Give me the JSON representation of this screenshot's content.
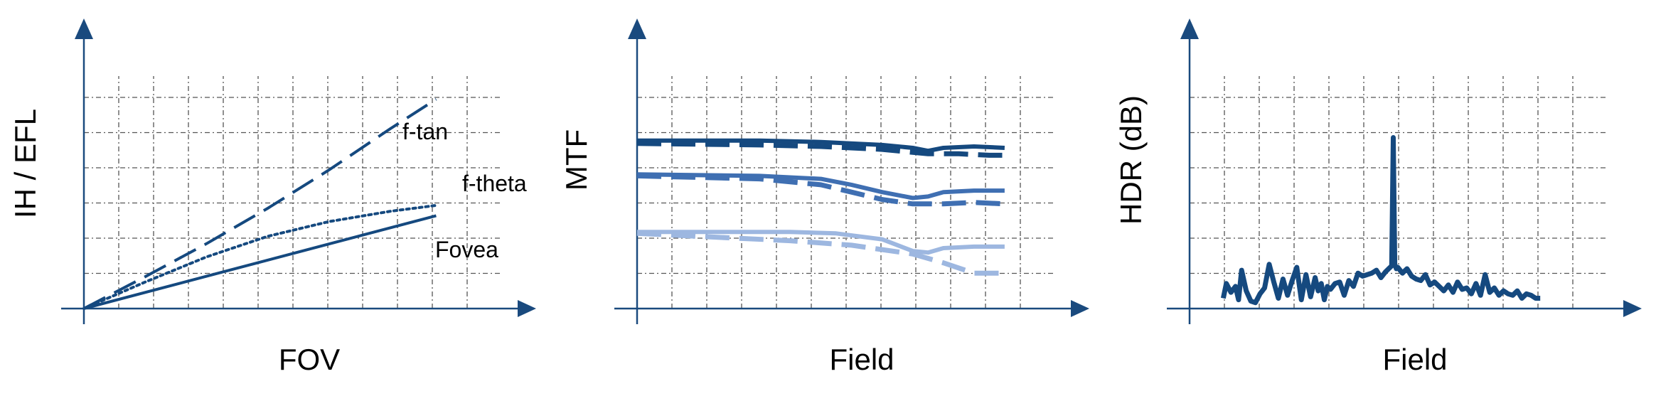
{
  "colors": {
    "axis": "#1a4a7e",
    "grid": "#555555",
    "dark_blue": "#15497f",
    "mid_blue": "#3f6fb2",
    "light_blue": "#9db7e0"
  },
  "chart_data": [
    {
      "type": "line",
      "xlabel": "FOV",
      "ylabel": "IH / EFL",
      "title": "",
      "grid": true,
      "tick_labels": false,
      "xlim": [
        0,
        13
      ],
      "ylim": [
        0,
        8.2
      ],
      "series": [
        {
          "name": "f-tan",
          "style": "dashed",
          "color": "#15497f",
          "x": [
            0,
            2,
            4,
            6,
            8,
            10,
            11.5
          ],
          "y": [
            0,
            1.08,
            2.2,
            3.4,
            4.7,
            6.1,
            7.1
          ]
        },
        {
          "name": "f-theta",
          "style": "solid",
          "color": "#15497f",
          "x": [
            0,
            11.5
          ],
          "y": [
            0,
            3.15
          ]
        },
        {
          "name": "Fovea",
          "style": "dotted",
          "color": "#15497f",
          "x": [
            0,
            2,
            4,
            6,
            8,
            10,
            11.5
          ],
          "y": [
            0,
            0.9,
            1.75,
            2.45,
            2.95,
            3.3,
            3.5
          ]
        }
      ],
      "annotations": [
        "f-tan",
        "f-theta",
        "Fovea"
      ]
    },
    {
      "type": "line",
      "xlabel": "Field",
      "ylabel": "MTF",
      "title": "",
      "grid": true,
      "tick_labels": false,
      "xlim": [
        0,
        13
      ],
      "ylim": [
        0,
        8.2
      ],
      "series": [
        {
          "style": "solid",
          "color": "#15497f",
          "x": [
            0,
            4,
            6,
            8,
            9,
            9.5,
            10,
            11,
            12
          ],
          "y": [
            5.7,
            5.7,
            5.65,
            5.55,
            5.45,
            5.35,
            5.45,
            5.5,
            5.45
          ]
        },
        {
          "style": "dashed",
          "color": "#15497f",
          "x": [
            0,
            4,
            6,
            8,
            9.5,
            10.5,
            11.5,
            12
          ],
          "y": [
            5.6,
            5.55,
            5.5,
            5.4,
            5.25,
            5.25,
            5.2,
            5.2
          ]
        },
        {
          "style": "solid",
          "color": "#3f6fb2",
          "x": [
            0,
            4,
            6,
            7,
            8,
            9,
            9.5,
            10,
            11,
            12
          ],
          "y": [
            4.55,
            4.5,
            4.4,
            4.2,
            3.95,
            3.75,
            3.8,
            3.95,
            4.0,
            4.0
          ]
        },
        {
          "style": "dashed",
          "color": "#3f6fb2",
          "x": [
            0,
            4,
            6,
            7,
            8,
            9,
            10,
            11,
            12
          ],
          "y": [
            4.5,
            4.4,
            4.2,
            3.95,
            3.7,
            3.55,
            3.55,
            3.6,
            3.55
          ]
        },
        {
          "style": "solid",
          "color": "#9db7e0",
          "x": [
            0,
            3,
            5,
            6.5,
            8,
            9,
            9.5,
            10,
            11,
            12
          ],
          "y": [
            2.6,
            2.6,
            2.6,
            2.55,
            2.35,
            1.95,
            1.9,
            2.05,
            2.1,
            2.1
          ]
        },
        {
          "style": "dashed",
          "color": "#9db7e0",
          "x": [
            0,
            3,
            5,
            7,
            9,
            10,
            11,
            12
          ],
          "y": [
            2.55,
            2.4,
            2.3,
            2.15,
            1.85,
            1.55,
            1.2,
            1.2
          ]
        }
      ]
    },
    {
      "type": "line",
      "xlabel": "Field",
      "ylabel": "HDR (dB)",
      "title": "",
      "grid": true,
      "tick_labels": false,
      "xlim": [
        0,
        13
      ],
      "ylim": [
        0,
        8.2
      ],
      "series": [
        {
          "style": "solid",
          "color": "#15497f",
          "x": [
            1.1,
            1.2,
            1.35,
            1.5,
            1.6,
            1.7,
            1.85,
            2.0,
            2.15,
            2.3,
            2.45,
            2.6,
            2.75,
            2.9,
            3.05,
            3.2,
            3.35,
            3.5,
            3.65,
            3.8,
            3.95,
            4.1,
            4.2,
            4.3,
            4.4,
            4.5,
            4.6,
            4.75,
            4.9,
            5.05,
            5.2,
            5.35,
            5.5,
            5.65,
            5.8,
            5.95,
            6.1,
            6.25,
            6.4,
            6.5,
            6.6,
            6.65,
            6.7,
            6.75,
            6.8,
            6.95,
            7.1,
            7.25,
            7.4,
            7.55,
            7.7,
            7.85,
            8.0,
            8.15,
            8.3,
            8.45,
            8.6,
            8.75,
            8.9,
            9.05,
            9.2,
            9.35,
            9.5,
            9.65,
            9.8,
            9.95,
            10.1,
            10.25,
            10.4,
            10.55,
            10.7,
            10.85,
            11.0,
            11.15,
            11.3,
            11.45
          ],
          "y": [
            0.35,
            0.85,
            0.55,
            0.75,
            0.3,
            1.3,
            0.6,
            0.25,
            0.2,
            0.5,
            0.7,
            1.5,
            0.9,
            0.35,
            1.0,
            0.45,
            0.95,
            1.4,
            0.3,
            1.15,
            0.4,
            1.05,
            0.6,
            0.85,
            0.3,
            0.75,
            0.65,
            0.85,
            0.9,
            0.45,
            0.95,
            0.75,
            1.2,
            1.1,
            1.15,
            1.2,
            1.3,
            1.05,
            1.25,
            1.35,
            1.45,
            5.8,
            1.5,
            1.35,
            1.4,
            1.2,
            1.35,
            1.1,
            1.0,
            0.95,
            1.15,
            0.8,
            0.9,
            0.75,
            0.6,
            0.8,
            0.55,
            0.9,
            0.65,
            0.7,
            0.5,
            0.85,
            0.45,
            1.15,
            0.55,
            0.7,
            0.45,
            0.6,
            0.5,
            0.45,
            0.6,
            0.35,
            0.5,
            0.45,
            0.35,
            0.35
          ]
        }
      ]
    }
  ]
}
